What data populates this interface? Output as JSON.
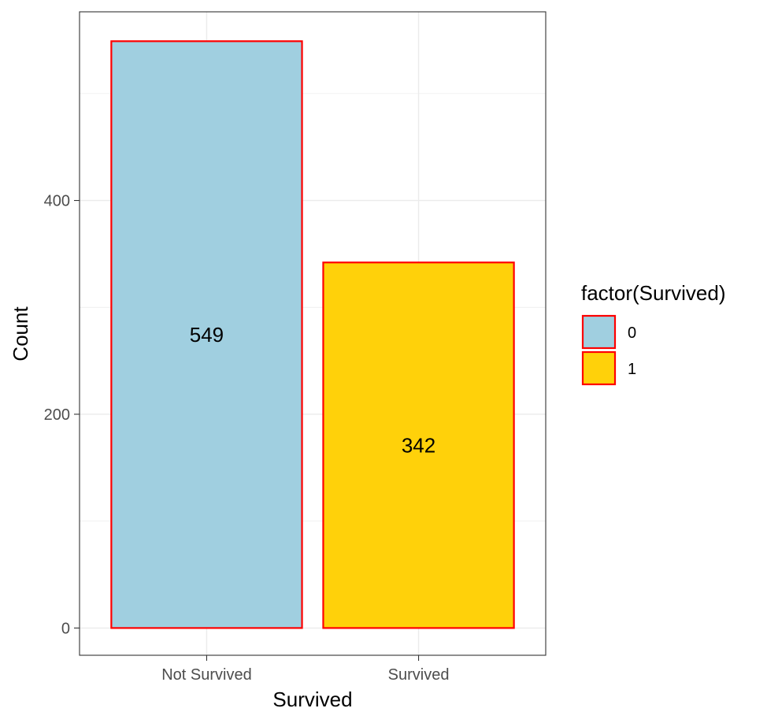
{
  "chart_data": {
    "type": "bar",
    "categories": [
      "Not Survived",
      "Survived"
    ],
    "values": [
      549,
      342
    ],
    "fill_levels": [
      "0",
      "1"
    ],
    "colors": {
      "0": "#a0cfe0",
      "1": "#ffd10a",
      "bar_outline": "#ff0000"
    },
    "xlabel": "Survived",
    "ylabel": "Count",
    "ylim": [
      -25.5,
      576.5
    ],
    "yticks": [
      0,
      200,
      400
    ],
    "ytick_labels": [
      "0",
      "200",
      "400"
    ],
    "grid": true,
    "legend": {
      "title": "factor(Survived)",
      "position": "right",
      "items": [
        {
          "key": "0",
          "label": "0"
        },
        {
          "key": "1",
          "label": "1"
        }
      ]
    },
    "bar_labels": [
      "549",
      "342"
    ]
  }
}
